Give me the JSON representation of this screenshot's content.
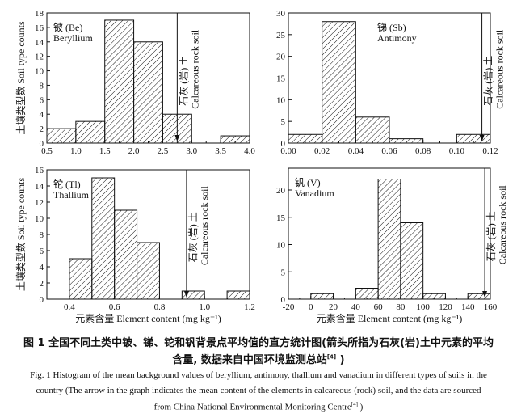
{
  "chart_data": [
    {
      "type": "bar",
      "label_cn": "铍 (Be)",
      "label_en": "Beryllium",
      "bin_edges": [
        0.5,
        1.0,
        1.5,
        2.0,
        2.5,
        3.0,
        3.5,
        4.0
      ],
      "values": [
        2,
        3,
        17,
        14,
        4,
        0,
        1
      ],
      "xlim": [
        0.5,
        4.0
      ],
      "ylim": [
        0,
        18
      ],
      "xticks": [
        0.5,
        1.0,
        1.5,
        2.0,
        2.5,
        3.0,
        3.5,
        4.0
      ],
      "yticks": [
        0,
        2,
        4,
        6,
        8,
        10,
        12,
        14,
        16,
        18
      ],
      "arrow_x": 2.75,
      "ylabel": "土壤类型数 Soil type counts",
      "xlabel": ""
    },
    {
      "type": "bar",
      "label_cn": "锑 (Sb)",
      "label_en": "Antimony",
      "bin_edges": [
        0,
        0.02,
        0.04,
        0.06,
        0.08,
        0.1,
        0.12
      ],
      "values": [
        2,
        28,
        6,
        1,
        0,
        2
      ],
      "xlim": [
        0,
        0.12
      ],
      "ylim": [
        0,
        30
      ],
      "xticks": [
        0.0,
        0.02,
        0.04,
        0.06,
        0.08,
        0.1,
        0.12
      ],
      "yticks": [
        0,
        5,
        10,
        15,
        20,
        25,
        30
      ],
      "arrow_x": 0.115,
      "ylabel": "",
      "xlabel": ""
    },
    {
      "type": "bar",
      "label_cn": "铊 (Tl)",
      "label_en": "Thallium",
      "bin_edges": [
        0.4,
        0.5,
        0.6,
        0.7,
        0.8,
        0.9,
        1.0,
        1.1,
        1.2
      ],
      "values": [
        5,
        15,
        11,
        7,
        0,
        1,
        0,
        1
      ],
      "xlim": [
        0.3,
        1.2
      ],
      "ylim": [
        0,
        16
      ],
      "xticks": [
        0.4,
        0.6,
        0.8,
        1.0,
        1.2
      ],
      "yticks": [
        0,
        2,
        4,
        6,
        8,
        10,
        12,
        14,
        16
      ],
      "arrow_x": 0.92,
      "ylabel": "土壤类型数 Soil type counts",
      "xlabel": "元素含量  Element content (mg kg⁻¹)"
    },
    {
      "type": "bar",
      "label_cn": "钒 (V)",
      "label_en": "Vanadium",
      "bin_edges": [
        0,
        20,
        40,
        60,
        80,
        100,
        120,
        140,
        160
      ],
      "values": [
        1,
        0,
        2,
        22,
        14,
        1,
        0,
        1
      ],
      "xlim": [
        -20,
        160
      ],
      "ylim": [
        0,
        24
      ],
      "xticks": [
        -20,
        0,
        20,
        40,
        60,
        80,
        100,
        120,
        140,
        160
      ],
      "yticks": [
        0,
        5,
        10,
        15,
        20
      ],
      "arrow_x": 155,
      "ylabel": "",
      "xlabel": "元素含量  Element content (mg kg⁻¹)"
    }
  ],
  "annotation": {
    "cn": "石灰 (岩) 土",
    "en": "Calcareous rock soil"
  },
  "caption": {
    "cn_line1": "图 1   全国不同土类中铍、锑、铊和钒背景点平均值的直方统计图(箭头所指为石灰(岩)土中元素的平均",
    "cn_line2": "含量, 数据来自中国环境监测总站",
    "cn_ref": "[4]",
    "cn_end": " )",
    "en_line1": "Fig. 1   Histogram of the mean background values of beryllium, antimony, thallium and vanadium in different types of soils in the",
    "en_line2": "country (The arrow in the graph indicates the mean content of the elements in calcareous (rock) soil, and the data are sourced",
    "en_line3": "from China National Environmental Monitoring Centre",
    "en_ref": "[4]",
    "en_end": " )"
  }
}
